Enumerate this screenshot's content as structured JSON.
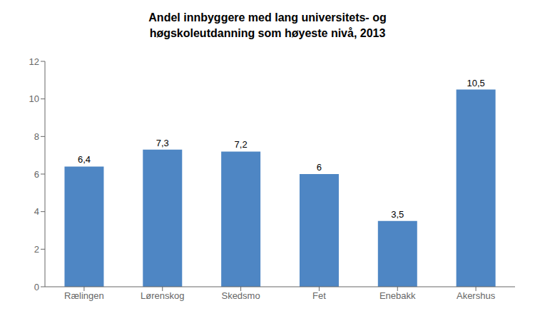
{
  "chart_data": {
    "type": "bar",
    "title": "Andel innbyggere med lang universitets- og\nhøgskoleutdanning som høyeste nivå, 2013",
    "categories": [
      "Rælingen",
      "Lørenskog",
      "Skedsmo",
      "Fet",
      "Enebakk",
      "Akershus"
    ],
    "values": [
      6.4,
      7.3,
      7.2,
      6.0,
      3.5,
      10.5
    ],
    "value_labels": [
      "6,4",
      "7,3",
      "7,2",
      "6",
      "3,5",
      "10,5"
    ],
    "data_labels": true,
    "color": "#4e86c4",
    "ylim": [
      0,
      12
    ],
    "yticks": [
      0,
      2,
      4,
      6,
      8,
      10,
      12
    ],
    "grid": false
  }
}
